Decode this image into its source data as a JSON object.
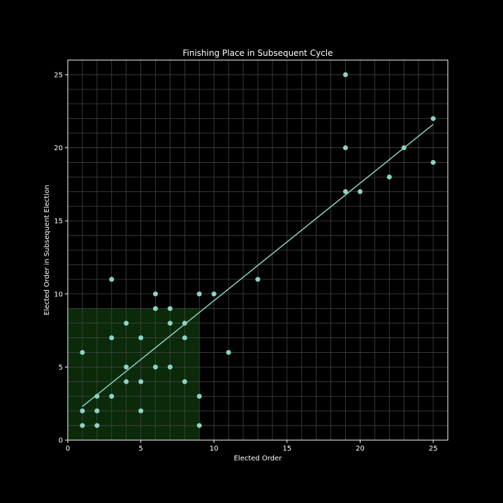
{
  "chart_data": {
    "type": "scatter",
    "title": "Finishing Place in Subsequent Cycle",
    "xlabel": "Elected Order",
    "ylabel": "Elected Order in Subsequent Election",
    "xlim": [
      0,
      26
    ],
    "ylim": [
      0,
      26
    ],
    "x_ticks": [
      0,
      5,
      10,
      15,
      20,
      25
    ],
    "y_ticks": [
      0,
      5,
      10,
      15,
      20,
      25
    ],
    "grid": true,
    "points": [
      {
        "x": 1,
        "y": 1
      },
      {
        "x": 1,
        "y": 2
      },
      {
        "x": 1,
        "y": 6
      },
      {
        "x": 2,
        "y": 1
      },
      {
        "x": 2,
        "y": 2
      },
      {
        "x": 2,
        "y": 3
      },
      {
        "x": 3,
        "y": 3
      },
      {
        "x": 3,
        "y": 7
      },
      {
        "x": 3,
        "y": 11
      },
      {
        "x": 4,
        "y": 4
      },
      {
        "x": 4,
        "y": 5
      },
      {
        "x": 4,
        "y": 8
      },
      {
        "x": 5,
        "y": 2
      },
      {
        "x": 5,
        "y": 4
      },
      {
        "x": 5,
        "y": 7
      },
      {
        "x": 6,
        "y": 5
      },
      {
        "x": 6,
        "y": 9
      },
      {
        "x": 6,
        "y": 10
      },
      {
        "x": 7,
        "y": 5
      },
      {
        "x": 7,
        "y": 8
      },
      {
        "x": 7,
        "y": 9
      },
      {
        "x": 8,
        "y": 4
      },
      {
        "x": 8,
        "y": 7
      },
      {
        "x": 8,
        "y": 8
      },
      {
        "x": 9,
        "y": 1
      },
      {
        "x": 9,
        "y": 3
      },
      {
        "x": 9,
        "y": 10
      },
      {
        "x": 10,
        "y": 10
      },
      {
        "x": 11,
        "y": 6
      },
      {
        "x": 13,
        "y": 11
      },
      {
        "x": 19,
        "y": 17
      },
      {
        "x": 19,
        "y": 20
      },
      {
        "x": 19,
        "y": 25
      },
      {
        "x": 20,
        "y": 17
      },
      {
        "x": 22,
        "y": 18
      },
      {
        "x": 23,
        "y": 20
      },
      {
        "x": 25,
        "y": 19
      },
      {
        "x": 25,
        "y": 22
      }
    ],
    "trend_line": {
      "x": [
        1,
        25
      ],
      "y": [
        2.3,
        21.6
      ]
    },
    "highlight_region": {
      "x": [
        0,
        9
      ],
      "y": [
        0,
        9
      ]
    },
    "colors": {
      "background": "#000000",
      "point": "#8dd3c7",
      "trend_line": "#8dd3c7",
      "highlight": "#0a2a0a",
      "grid": "#444444",
      "axis": "#ffffff"
    }
  }
}
